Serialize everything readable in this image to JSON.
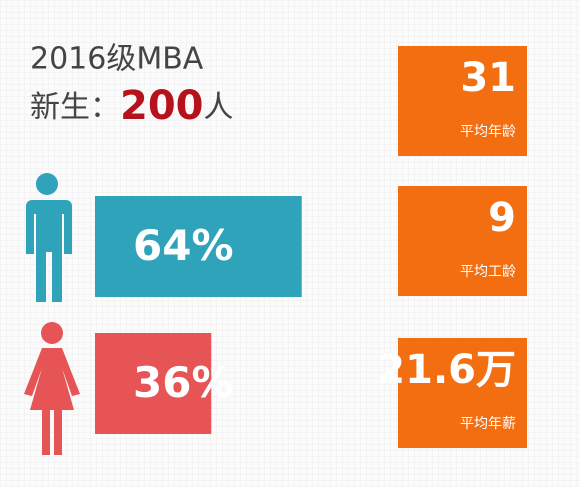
{
  "header": {
    "title": "2016级MBA",
    "prefix": "新生：",
    "count": "200",
    "suffix": "人"
  },
  "bars": {
    "values": [
      64,
      36
    ],
    "value_labels": [
      "64%",
      "36%"
    ],
    "colors": [
      "#2ea3b9",
      "#e65455"
    ]
  },
  "stats": [
    {
      "value": "31",
      "label": "平均年龄"
    },
    {
      "value": "9",
      "label": "平均工龄"
    },
    {
      "value": "21.6万",
      "label": "平均年薪"
    }
  ],
  "box_color": "#f36e10"
}
